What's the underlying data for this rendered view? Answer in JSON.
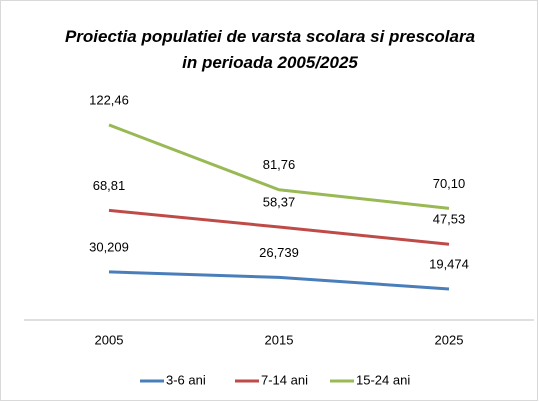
{
  "chart_data": {
    "type": "line",
    "title": "Proiectia populatiei de varsta scolara si prescolara in perioada 2005/2025",
    "categories": [
      "2005",
      "2015",
      "2025"
    ],
    "ylim": [
      0,
      140
    ],
    "series": [
      {
        "name": "3-6 ani",
        "color": "#4a7ebb",
        "values": [
          30.209,
          26.739,
          19.474
        ],
        "value_labels": [
          "30,209",
          "26,739",
          "19,474"
        ]
      },
      {
        "name": "7-14 ani",
        "color": "#be4b48",
        "values": [
          68.81,
          58.37,
          47.53
        ],
        "value_labels": [
          "68,81",
          "58,37",
          "47,53"
        ]
      },
      {
        "name": "15-24 ani",
        "color": "#98b954",
        "values": [
          122.46,
          81.76,
          70.1
        ],
        "value_labels": [
          "122,46",
          "81,76",
          "70,10"
        ]
      }
    ]
  }
}
